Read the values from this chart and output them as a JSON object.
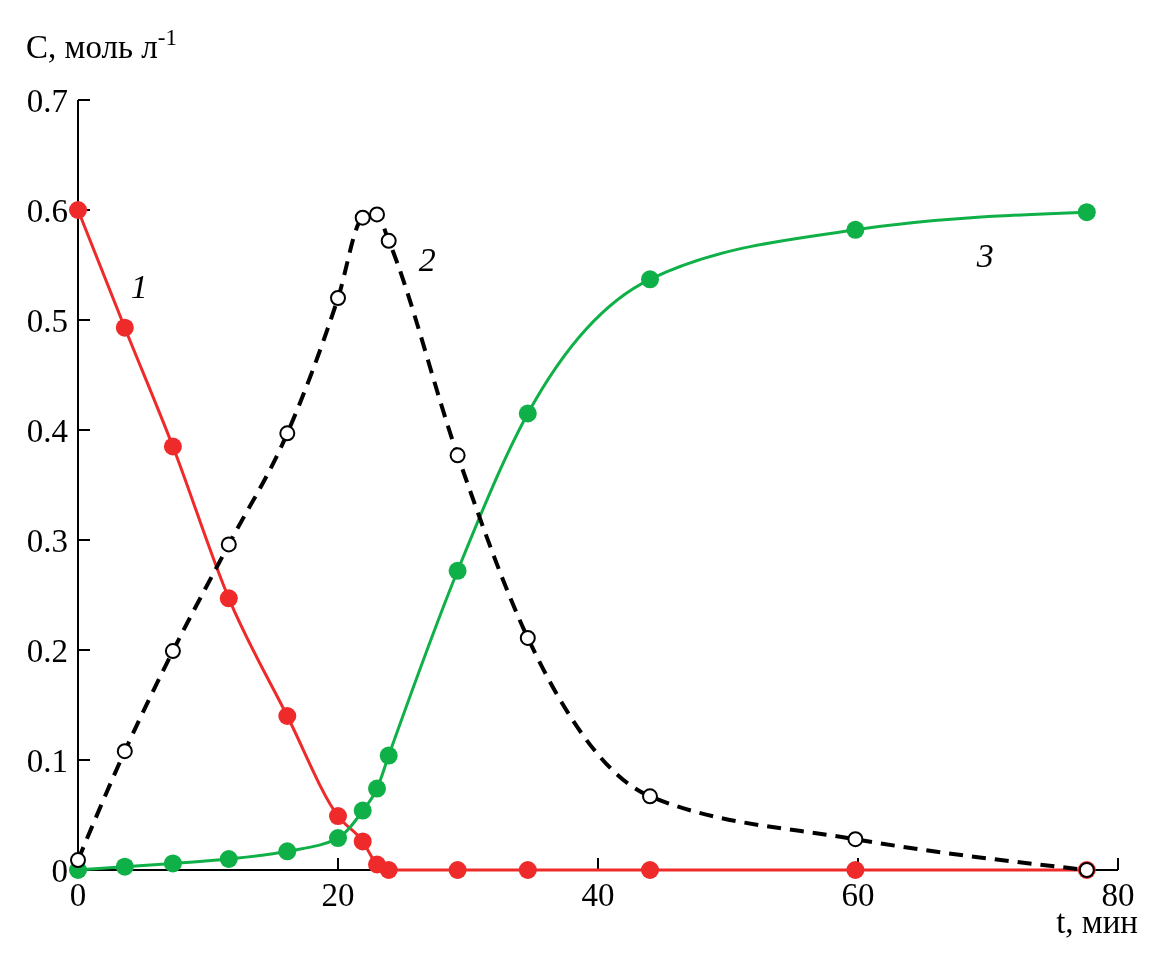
{
  "chart_data": {
    "type": "line",
    "xlabel": "t, мин",
    "ylabel": "C, моль л$^{-1}$",
    "xlim": [
      0,
      80
    ],
    "ylim": [
      0,
      0.7
    ],
    "xticks": [
      0,
      20,
      40,
      60,
      80
    ],
    "yticks": [
      0,
      0.1,
      0.2,
      0.3,
      0.4,
      0.5,
      0.6,
      0.7
    ],
    "grid": false,
    "marker": "circle",
    "x": [
      0,
      3.6,
      7.3,
      11.6,
      16.1,
      20,
      21.9,
      23,
      23.9,
      29.2,
      34.6,
      44,
      59.8,
      77.6
    ],
    "series": [
      {
        "name": "1",
        "color": "#ee2a2a",
        "line_style": "solid",
        "values": [
          0.6,
          0.493,
          0.385,
          0.247,
          0.14,
          0.049,
          0.026,
          0.005,
          0,
          0,
          0,
          0,
          0,
          0
        ]
      },
      {
        "name": "2",
        "color": "#000000",
        "line_style": "dashed",
        "marker": "open-circle",
        "values": [
          0.009,
          0.108,
          0.199,
          0.296,
          0.397,
          0.52,
          0.593,
          0.596,
          0.572,
          0.377,
          0.211,
          0.067,
          0.028,
          0
        ]
      },
      {
        "name": "3",
        "color": "#10b048",
        "line_style": "solid",
        "values": [
          0,
          0.003,
          0.006,
          0.01,
          0.017,
          0.029,
          0.054,
          0.074,
          0.104,
          0.272,
          0.415,
          0.537,
          0.582,
          0.598
        ]
      }
    ]
  }
}
